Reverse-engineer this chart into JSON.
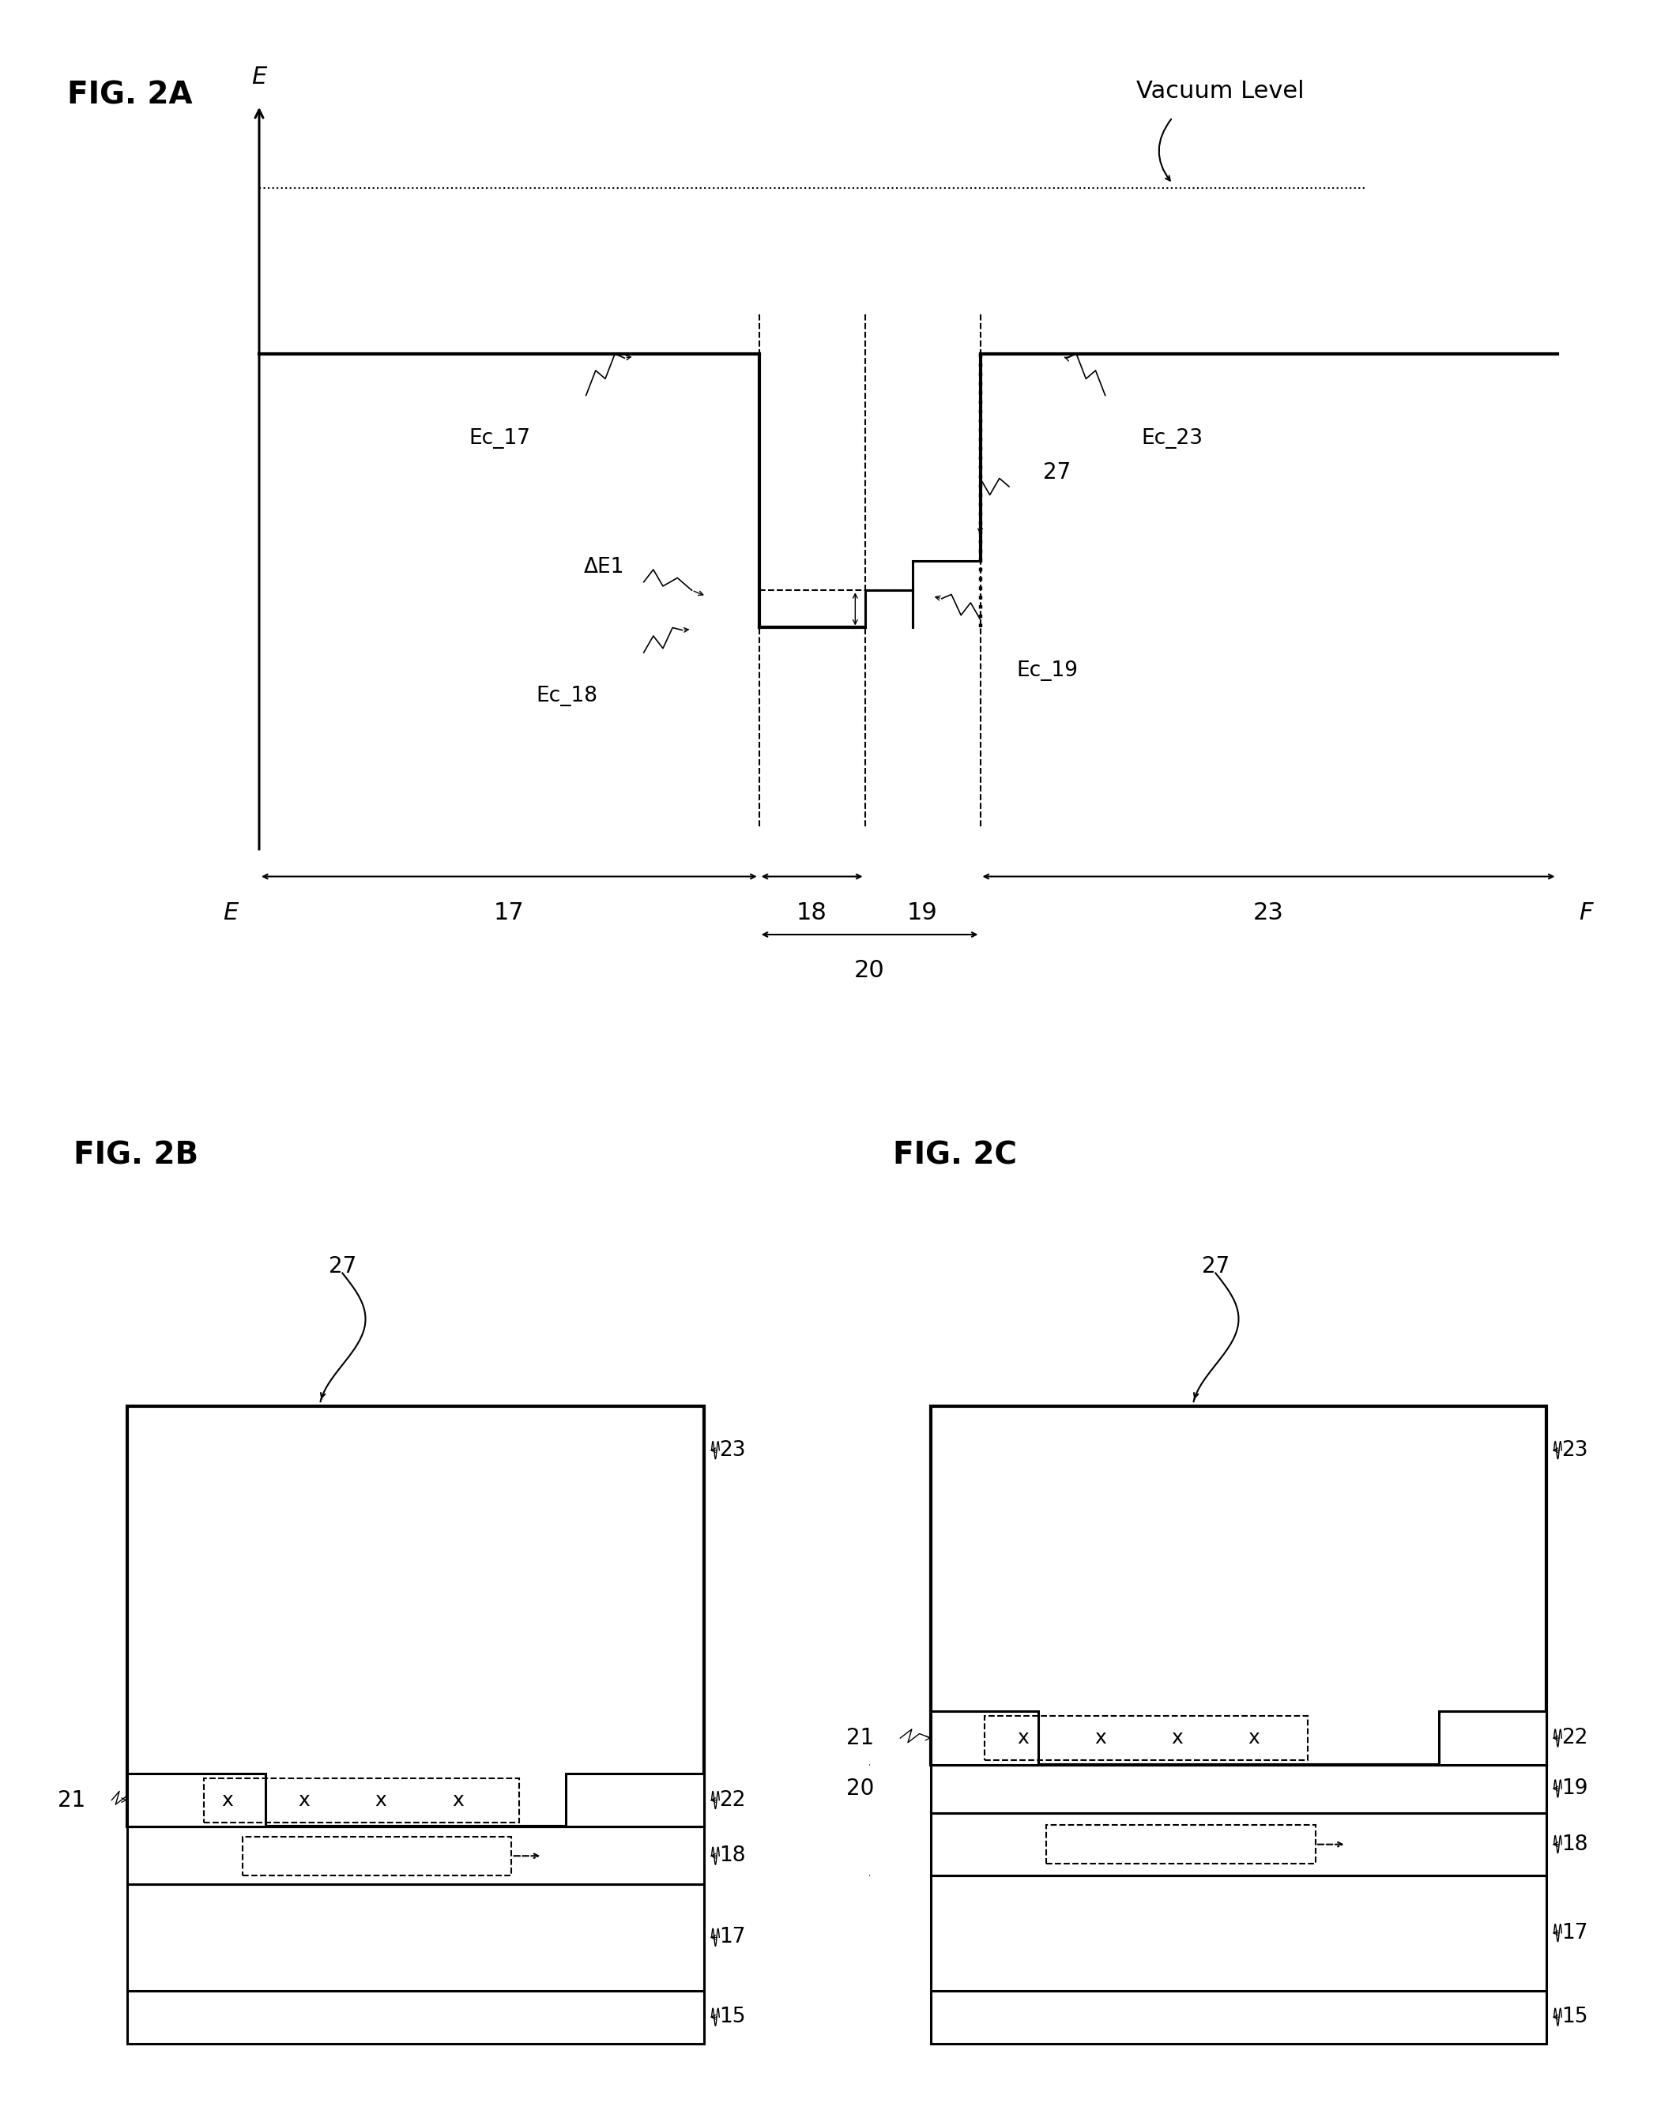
{
  "fig_label_2A": "FIG. 2A",
  "fig_label_2B": "FIG. 2B",
  "fig_label_2C": "FIG. 2C",
  "vacuum_level_label": "Vacuum Level",
  "bg_color": "#ffffff",
  "line_color": "#000000"
}
